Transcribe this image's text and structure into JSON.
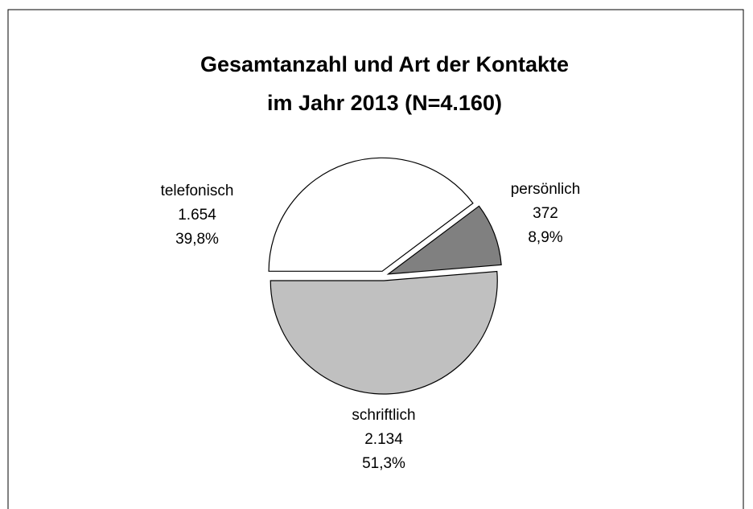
{
  "chart_data": {
    "type": "pie",
    "title": [
      "Gesamtanzahl und Art der Kontakte",
      "im Jahr 2013 (N=4.160)"
    ],
    "categories": [
      "telefonisch",
      "persönlich",
      "schriftlich"
    ],
    "values": [
      1654,
      372,
      2134
    ],
    "value_labels": [
      "1.654",
      "372",
      "2.134"
    ],
    "percents": [
      39.8,
      8.9,
      51.3
    ],
    "percent_labels": [
      "39,8%",
      "8,9%",
      "51,3%"
    ],
    "colors": [
      "#ffffff",
      "#808080",
      "#c0c0c0"
    ]
  }
}
